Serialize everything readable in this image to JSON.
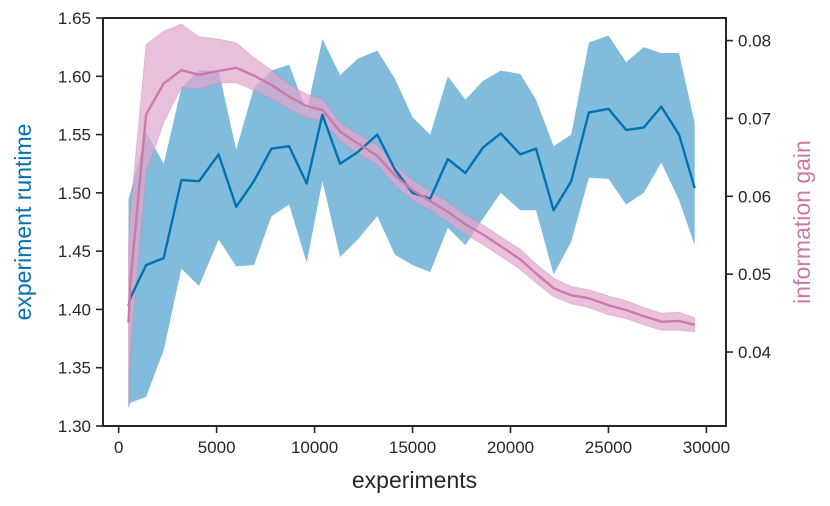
{
  "chart_data": {
    "type": "line",
    "xlabel": "experiments",
    "ylabel_left": "experiment runtime",
    "ylabel_right": "information gain",
    "xlim": [
      -800,
      31000
    ],
    "ylim_left": [
      1.3,
      1.65
    ],
    "ylim_right": [
      0.0305,
      0.0829
    ],
    "x_ticks": [
      0,
      5000,
      10000,
      15000,
      20000,
      25000,
      30000
    ],
    "y_ticks_left": [
      1.3,
      1.35,
      1.4,
      1.45,
      1.5,
      1.55,
      1.6,
      1.65
    ],
    "y_ticks_right": [
      0.04,
      0.05,
      0.06,
      0.07,
      0.08
    ],
    "grid": false,
    "colors": {
      "runtime_line": "#0072b2",
      "runtime_band": "#7bb8da",
      "gain_line": "#cc79a7",
      "gain_band": "#e0a8cd",
      "axis": "#262626",
      "left_label": "#0072b2",
      "right_label": "#cc79a7"
    },
    "x": [
      500,
      600,
      1400,
      2300,
      3200,
      4100,
      5100,
      6000,
      6900,
      7800,
      8700,
      9600,
      10400,
      11300,
      12200,
      13200,
      14100,
      15000,
      15900,
      16800,
      17700,
      18600,
      19500,
      20500,
      21300,
      22200,
      23100,
      24000,
      25000,
      25900,
      26800,
      27700,
      28600,
      29400
    ],
    "series": [
      {
        "name": "experiment runtime",
        "axis": "left",
        "values": [
          1.403,
          1.41,
          1.438,
          1.444,
          1.511,
          1.51,
          1.533,
          1.488,
          1.51,
          1.538,
          1.54,
          1.508,
          1.567,
          1.525,
          1.535,
          1.55,
          1.52,
          1.5,
          1.495,
          1.529,
          1.517,
          1.539,
          1.551,
          1.533,
          1.538,
          1.485,
          1.51,
          1.569,
          1.572,
          1.554,
          1.556,
          1.574,
          1.55,
          1.504
        ],
        "lower": [
          1.315,
          1.32,
          1.325,
          1.365,
          1.435,
          1.42,
          1.46,
          1.437,
          1.438,
          1.48,
          1.49,
          1.44,
          1.51,
          1.445,
          1.46,
          1.48,
          1.447,
          1.438,
          1.432,
          1.47,
          1.455,
          1.478,
          1.5,
          1.485,
          1.485,
          1.43,
          1.458,
          1.513,
          1.512,
          1.49,
          1.5,
          1.526,
          1.494,
          1.455
        ],
        "upper": [
          1.495,
          1.5,
          1.552,
          1.525,
          1.59,
          1.605,
          1.605,
          1.537,
          1.59,
          1.605,
          1.61,
          1.57,
          1.632,
          1.601,
          1.615,
          1.622,
          1.598,
          1.565,
          1.55,
          1.6,
          1.58,
          1.596,
          1.605,
          1.602,
          1.58,
          1.54,
          1.55,
          1.629,
          1.635,
          1.612,
          1.625,
          1.62,
          1.62,
          1.56
        ]
      },
      {
        "name": "information gain",
        "axis": "right",
        "values": [
          0.0438,
          0.049,
          0.0705,
          0.0745,
          0.0762,
          0.0756,
          0.0761,
          0.0765,
          0.0755,
          0.0743,
          0.0728,
          0.0716,
          0.0711,
          0.0683,
          0.0668,
          0.0652,
          0.0627,
          0.0608,
          0.0594,
          0.058,
          0.0564,
          0.0551,
          0.0536,
          0.0519,
          0.0501,
          0.0482,
          0.0473,
          0.0469,
          0.046,
          0.0454,
          0.0446,
          0.0439,
          0.044,
          0.0435
        ],
        "lower": [
          0.033,
          0.04,
          0.063,
          0.0695,
          0.074,
          0.0738,
          0.0745,
          0.0746,
          0.0736,
          0.0725,
          0.0712,
          0.0701,
          0.0697,
          0.0671,
          0.0655,
          0.064,
          0.0614,
          0.0595,
          0.0582,
          0.0567,
          0.0551,
          0.0538,
          0.0523,
          0.0506,
          0.0489,
          0.0471,
          0.0462,
          0.0457,
          0.0448,
          0.0443,
          0.0435,
          0.0428,
          0.0428,
          0.0426
        ],
        "upper": [
          0.054,
          0.058,
          0.0795,
          0.0812,
          0.0821,
          0.0805,
          0.0802,
          0.0797,
          0.0778,
          0.0762,
          0.0744,
          0.0731,
          0.0725,
          0.0695,
          0.068,
          0.0666,
          0.0641,
          0.0621,
          0.0607,
          0.0593,
          0.0577,
          0.0563,
          0.0548,
          0.0532,
          0.0513,
          0.0495,
          0.0484,
          0.048,
          0.0472,
          0.0466,
          0.0457,
          0.045,
          0.0451,
          0.0444
        ]
      }
    ]
  }
}
